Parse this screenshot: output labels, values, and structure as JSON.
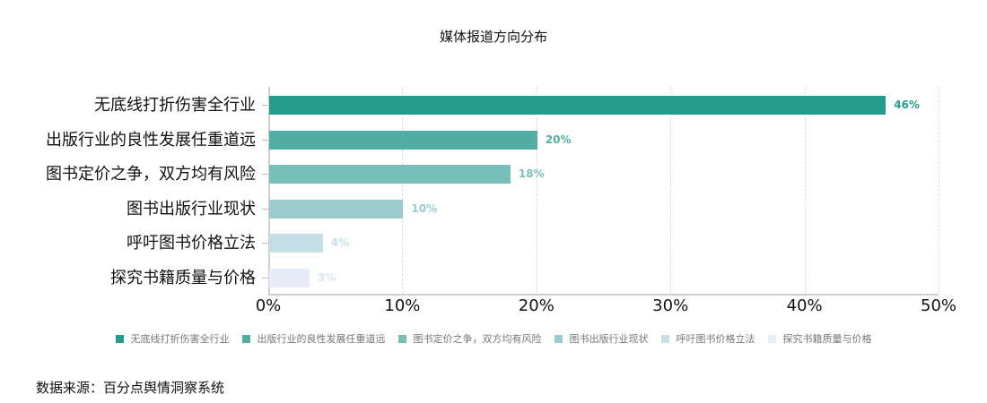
{
  "title": "媒体报道方向分布",
  "source": "数据来源：百分点舆情洞察系统",
  "chart_data": {
    "type": "bar",
    "orientation": "horizontal",
    "title": "媒体报道方向分布",
    "xlabel": "",
    "ylabel": "",
    "xlim": [
      0,
      50
    ],
    "x_ticks": [
      "0%",
      "10%",
      "20%",
      "30%",
      "40%",
      "50%"
    ],
    "grid": "vertical dashed",
    "legend_position": "bottom",
    "categories": [
      "无底线打折伤害全行业",
      "出版行业的良性发展任重道远",
      "图书定价之争，双方均有风险",
      "图书出版行业现状",
      "呼吁图书价格立法",
      "探究书籍质量与价格"
    ],
    "values": [
      46,
      20,
      18,
      10,
      4,
      3
    ],
    "labels": [
      "46%",
      "20%",
      "18%",
      "10%",
      "4%",
      "3%"
    ],
    "colors": [
      "#269c8d",
      "#52ada4",
      "#78bfb8",
      "#9dcccf",
      "#c4dfe6",
      "#e8ecf8"
    ]
  }
}
